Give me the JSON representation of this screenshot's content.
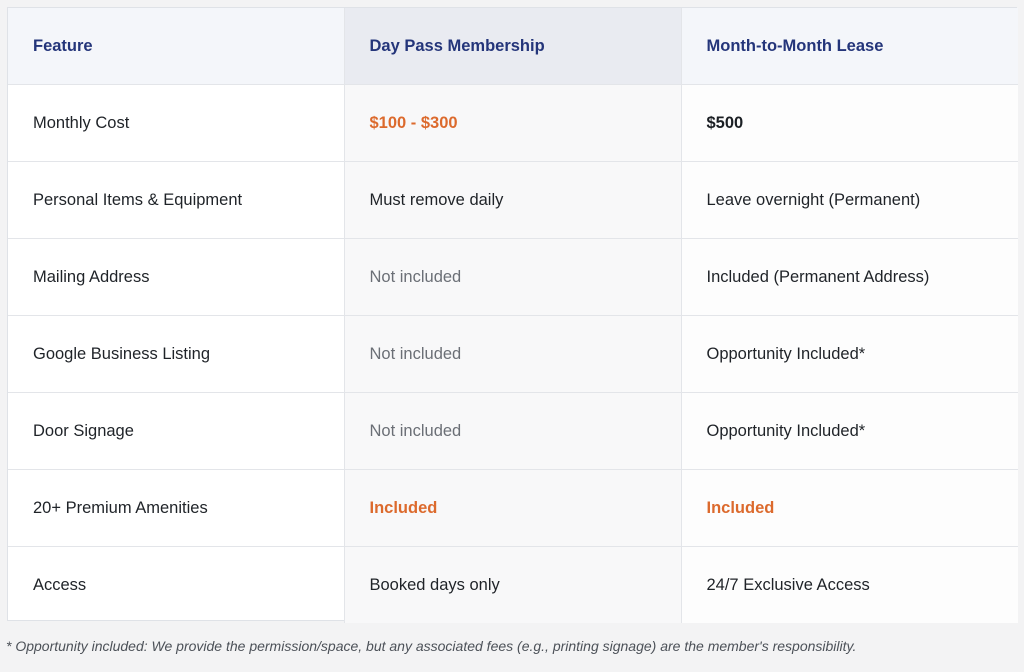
{
  "table": {
    "headers": [
      "Feature",
      "Day Pass Membership",
      "Month-to-Month Lease"
    ],
    "rows": [
      {
        "feature": "Monthly Cost",
        "day_pass": "$100 - $300",
        "month_lease": "$500"
      },
      {
        "feature": "Personal Items & Equipment",
        "day_pass": "Must remove daily",
        "month_lease": "Leave overnight (Permanent)"
      },
      {
        "feature": "Mailing Address",
        "day_pass": "Not included",
        "month_lease": "Included (Permanent Address)"
      },
      {
        "feature": "Google Business Listing",
        "day_pass": "Not included",
        "month_lease": "Opportunity Included*"
      },
      {
        "feature": "Door Signage",
        "day_pass": "Not included",
        "month_lease": "Opportunity Included*"
      },
      {
        "feature": "20+ Premium Amenities",
        "day_pass": "Included",
        "month_lease": "Included"
      },
      {
        "feature": "Access",
        "day_pass": "Booked days only",
        "month_lease": "24/7 Exclusive Access"
      }
    ]
  },
  "footnote": "* Opportunity included: We provide the permission/space, but any associated fees (e.g., printing signage) are the member's responsibility.",
  "colors": {
    "header_text": "#24357a",
    "accent_orange": "#dc6a2d",
    "muted_text": "#6b6f76"
  }
}
